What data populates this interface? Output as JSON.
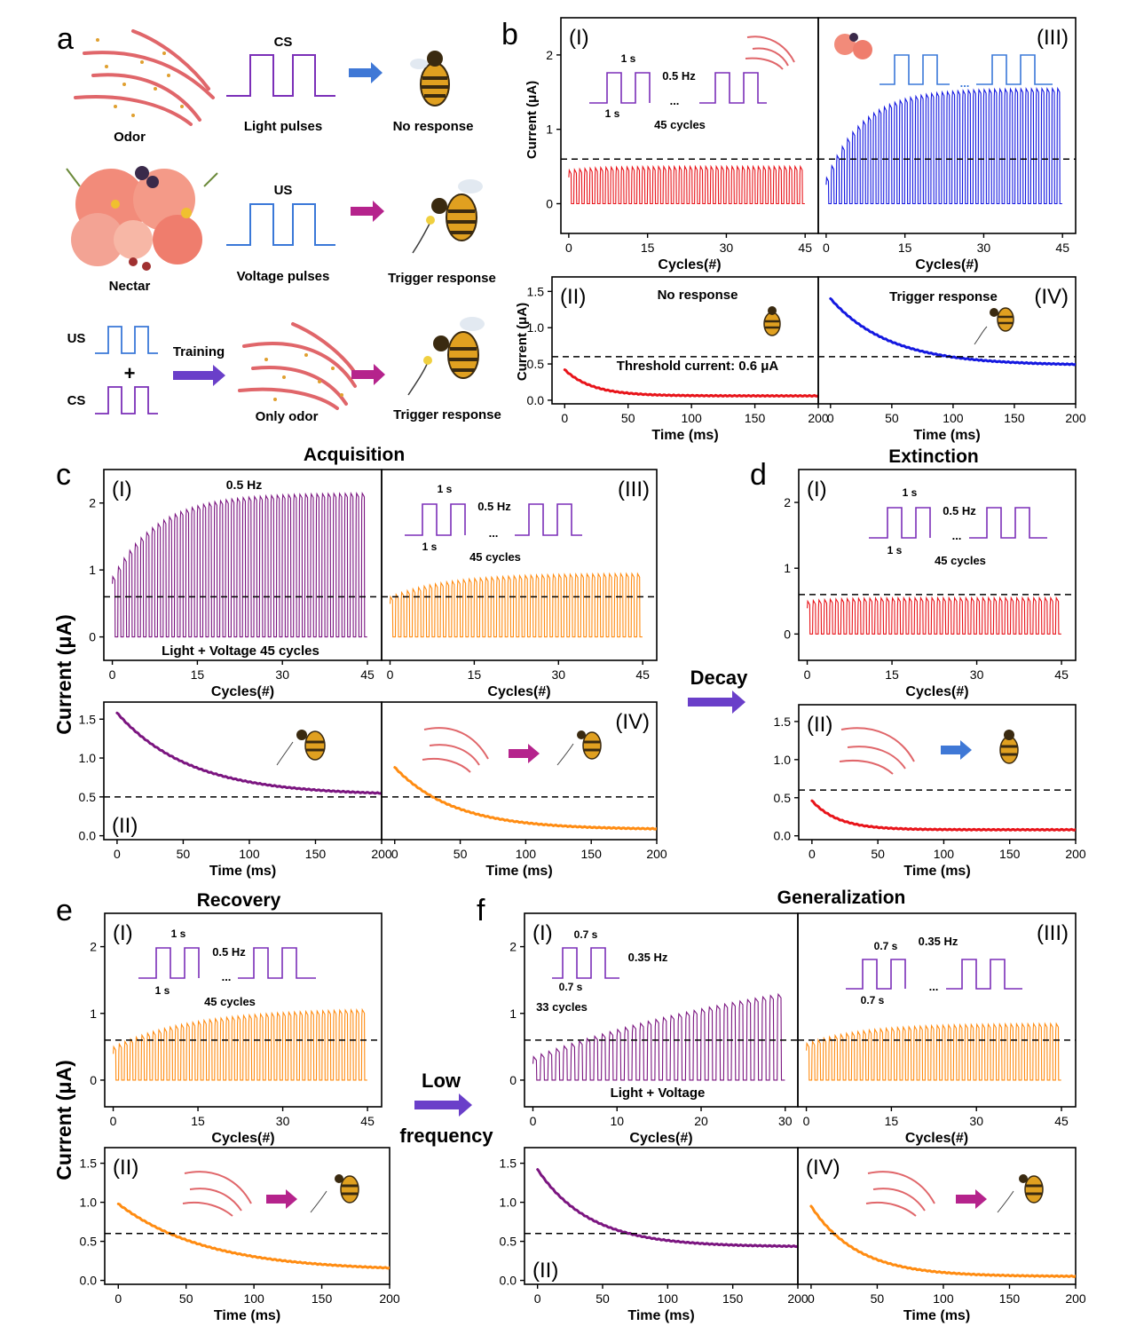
{
  "panel_letters": {
    "a": "a",
    "b": "b",
    "c": "c",
    "d": "d",
    "e": "e",
    "f": "f"
  },
  "section_titles": {
    "acquisition": "Acquisition",
    "extinction": "Extinction",
    "recovery": "Recovery",
    "generalization": "Generalization"
  },
  "arrows": {
    "decay": "Decay",
    "low": "Low",
    "frequency": "frequency"
  },
  "panel_a": {
    "odor": "Odor",
    "nectar": "Nectar",
    "only_odor": "Only odor",
    "cs": "CS",
    "us": "US",
    "plus": "+",
    "training": "Training",
    "light_pulses": "Light pulses",
    "voltage_pulses": "Voltage pulses",
    "no_response": "No response",
    "trigger_response": "Trigger response",
    "trigger_response_2": "Trigger response"
  },
  "labels": {
    "current_ua": "Current (μA)",
    "cycles": "Cycles(#)",
    "time_ms": "Time (ms)",
    "roman": {
      "i": "(I)",
      "ii": "(II)",
      "iii": "(III)",
      "iv": "(IV)"
    }
  },
  "annotations": {
    "one_s": "1 s",
    "half_hz": "0.5 Hz",
    "ellipsis": "...",
    "cycles45": "45 cycles",
    "no_response": "No response",
    "trigger_response": "Trigger response",
    "threshold": "Threshold current: 0.6 μA",
    "light_voltage_45": "Light + Voltage   45 cycles",
    "light_voltage": "Light + Voltage",
    "p07s": "0.7 s",
    "hz035": "0.35 Hz",
    "cycles33": "33 cycles"
  },
  "colors": {
    "red": "#e8141a",
    "blue": "#1418e0",
    "purple": "#7b1580",
    "orange": "#ff8c12",
    "pulse_purple": "#7b2fb8",
    "pulse_blue": "#3a78d8",
    "arrow_blue": "#3f78d6",
    "arrow_magenta": "#b5238c",
    "arrow_violet": "#6a3fc9"
  },
  "chart_data": [
    {
      "id": "b-I",
      "type": "line",
      "xlabel": "Cycles(#)",
      "ylabel": "Current (μA)",
      "xlim": [
        -1.5,
        47.5
      ],
      "ylim": [
        -0.4,
        2.5
      ],
      "xticks": [
        0,
        15,
        30,
        45
      ],
      "yticks": [
        0,
        1,
        2
      ],
      "threshold": 0.6,
      "cycles": 45,
      "envelope": {
        "start": 0.45,
        "end": 0.5,
        "tau": 5
      },
      "peak_fn": "exp_rise"
    },
    {
      "id": "b-III",
      "type": "line",
      "xlabel": "Cycles(#)",
      "xlim": [
        -1.5,
        47.5
      ],
      "ylim": [
        -0.4,
        2.5
      ],
      "xticks": [
        0,
        15,
        30,
        45
      ],
      "threshold": 0.6,
      "cycles": 45,
      "envelope": {
        "start": 0.35,
        "end": 1.55,
        "tau": 7
      },
      "peak_fn": "exp_rise"
    },
    {
      "id": "b-II",
      "type": "line",
      "xlabel": "Time (ms)",
      "ylabel": "Current (μA)",
      "xlim": [
        -10,
        200
      ],
      "ylim": [
        -0.05,
        1.7
      ],
      "xticks": [
        0,
        50,
        100,
        150,
        200
      ],
      "yticks": [
        0.0,
        0.5,
        1.0,
        1.5
      ],
      "threshold": 0.6,
      "decay": {
        "start": 0.42,
        "end": 0.06,
        "tau": 22
      }
    },
    {
      "id": "b-IV",
      "type": "line",
      "xlabel": "Time (ms)",
      "xlim": [
        -10,
        200
      ],
      "ylim": [
        -0.05,
        1.7
      ],
      "xticks": [
        0,
        50,
        100,
        150,
        200
      ],
      "threshold": 0.6,
      "decay": {
        "start": 1.4,
        "end": 0.48,
        "tau": 48
      }
    },
    {
      "id": "c-I",
      "type": "line",
      "xlabel": "Cycles(#)",
      "xlim": [
        -1.5,
        47.5
      ],
      "ylim": [
        -0.35,
        2.5
      ],
      "xticks": [
        0,
        15,
        30,
        45
      ],
      "yticks": [
        0,
        1,
        2
      ],
      "threshold": 0.6,
      "cycles": 45,
      "envelope": {
        "start": 0.9,
        "end": 2.15,
        "tau": 8
      },
      "peak_fn": "exp_rise"
    },
    {
      "id": "c-III",
      "type": "line",
      "xlabel": "Cycles(#)",
      "xlim": [
        -1.5,
        47.5
      ],
      "ylim": [
        -0.35,
        2.5
      ],
      "xticks": [
        0,
        15,
        30,
        45
      ],
      "threshold": 0.6,
      "cycles": 45,
      "envelope": {
        "start": 0.6,
        "end": 0.95,
        "tau": 10
      },
      "peak_fn": "exp_rise"
    },
    {
      "id": "c-II",
      "type": "line",
      "xlabel": "Time (ms)",
      "xlim": [
        -10,
        200
      ],
      "ylim": [
        -0.05,
        1.72
      ],
      "xticks": [
        0,
        50,
        100,
        150,
        200
      ],
      "yticks": [
        0.0,
        0.5,
        1.0,
        1.5
      ],
      "threshold": 0.5,
      "decay": {
        "start": 1.58,
        "end": 0.52,
        "tau": 55
      }
    },
    {
      "id": "c-IV",
      "type": "line",
      "xlabel": "Time (ms)",
      "xlim": [
        -10,
        200
      ],
      "ylim": [
        -0.05,
        1.72
      ],
      "xticks": [
        0,
        50,
        100,
        150,
        200
      ],
      "threshold": 0.5,
      "decay": {
        "start": 0.88,
        "end": 0.08,
        "tau": 45
      }
    },
    {
      "id": "d-I",
      "type": "line",
      "xlabel": "Cycles(#)",
      "xlim": [
        -1.5,
        47.5
      ],
      "ylim": [
        -0.4,
        2.5
      ],
      "xticks": [
        0,
        15,
        30,
        45
      ],
      "yticks": [
        0,
        1,
        2
      ],
      "threshold": 0.6,
      "cycles": 45,
      "envelope": {
        "start": 0.5,
        "end": 0.55,
        "tau": 5
      },
      "peak_fn": "exp_rise"
    },
    {
      "id": "d-II",
      "type": "line",
      "xlabel": "Time (ms)",
      "xlim": [
        -10,
        200
      ],
      "ylim": [
        -0.05,
        1.72
      ],
      "xticks": [
        0,
        50,
        100,
        150,
        200
      ],
      "yticks": [
        0.0,
        0.5,
        1.0,
        1.5
      ],
      "threshold": 0.6,
      "decay": {
        "start": 0.46,
        "end": 0.08,
        "tau": 20
      }
    },
    {
      "id": "e-I",
      "type": "line",
      "xlabel": "Cycles(#)",
      "xlim": [
        -1.5,
        47.5
      ],
      "ylim": [
        -0.4,
        2.5
      ],
      "xticks": [
        0,
        15,
        30,
        45
      ],
      "yticks": [
        0,
        1,
        2
      ],
      "threshold": 0.6,
      "cycles": 45,
      "envelope": {
        "start": 0.5,
        "end": 1.08,
        "tau": 14
      },
      "peak_fn": "exp_rise"
    },
    {
      "id": "e-II",
      "type": "line",
      "xlabel": "Time (ms)",
      "xlim": [
        -10,
        200
      ],
      "ylim": [
        -0.05,
        1.7
      ],
      "xticks": [
        0,
        50,
        100,
        150,
        200
      ],
      "yticks": [
        0.0,
        0.5,
        1.0,
        1.5
      ],
      "threshold": 0.6,
      "decay": {
        "start": 0.98,
        "end": 0.12,
        "tau": 65
      }
    },
    {
      "id": "f-I",
      "type": "line",
      "xlabel": "Cycles(#)",
      "xlim": [
        -1.0,
        31.5
      ],
      "ylim": [
        -0.4,
        2.5
      ],
      "xticks": [
        0,
        10,
        20,
        30
      ],
      "yticks": [
        0,
        1,
        2
      ],
      "threshold": 0.6,
      "cycles": 33,
      "envelope": {
        "start": 0.35,
        "end": 2.05,
        "tau": 40
      },
      "peak_fn": "exp_rise"
    },
    {
      "id": "f-III",
      "type": "line",
      "xlabel": "Cycles(#)",
      "xlim": [
        -1.5,
        47.5
      ],
      "ylim": [
        -0.4,
        2.5
      ],
      "xticks": [
        0,
        15,
        30,
        45
      ],
      "threshold": 0.6,
      "cycles": 45,
      "envelope": {
        "start": 0.55,
        "end": 0.85,
        "tau": 10
      },
      "peak_fn": "exp_rise"
    },
    {
      "id": "f-II",
      "type": "line",
      "xlabel": "Time (ms)",
      "xlim": [
        -10,
        200
      ],
      "ylim": [
        -0.05,
        1.7
      ],
      "xticks": [
        0,
        50,
        100,
        150,
        200
      ],
      "yticks": [
        0.0,
        0.5,
        1.0,
        1.5
      ],
      "threshold": 0.6,
      "decay": {
        "start": 1.42,
        "end": 0.43,
        "tau": 40
      }
    },
    {
      "id": "f-IV",
      "type": "line",
      "xlabel": "Time (ms)",
      "xlim": [
        -10,
        200
      ],
      "ylim": [
        -0.05,
        1.7
      ],
      "xticks": [
        0,
        50,
        100,
        150,
        200
      ],
      "threshold": 0.6,
      "decay": {
        "start": 0.95,
        "end": 0.05,
        "tau": 35
      }
    }
  ]
}
